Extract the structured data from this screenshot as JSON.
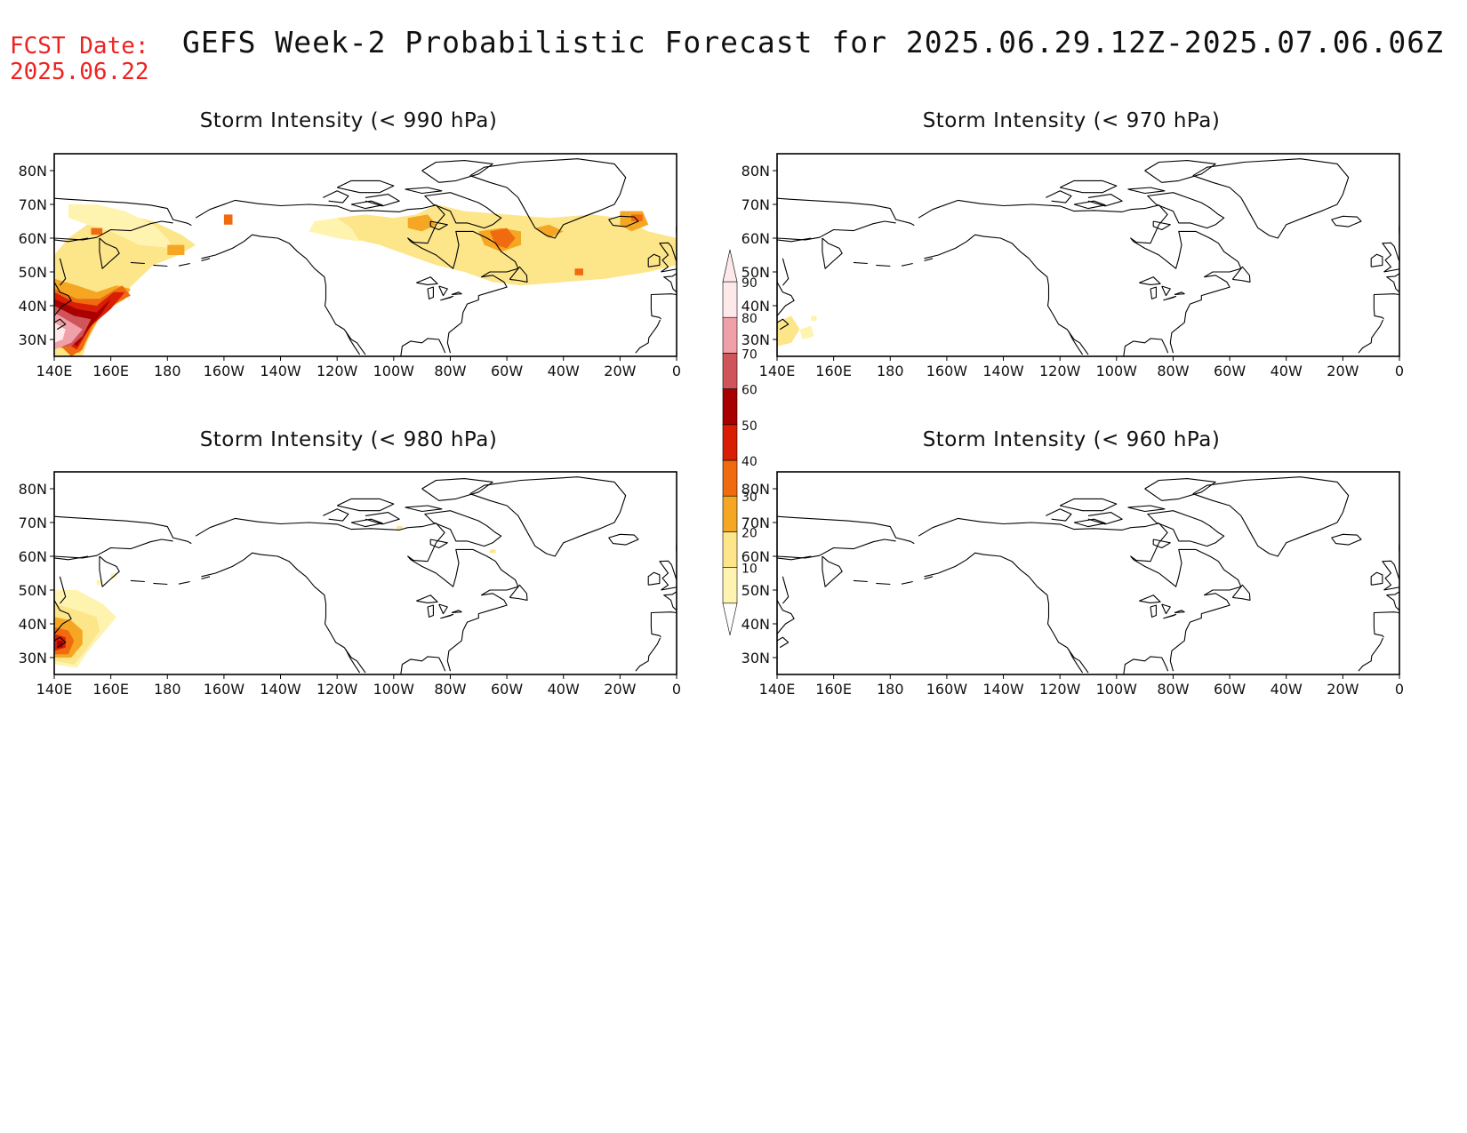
{
  "header": {
    "fcst_label": "FCST Date:",
    "fcst_date": "2025.06.22",
    "title": "GEFS Week-2 Probabilistic Forecast for 2025.06.29.12Z-2025.07.06.06Z"
  },
  "colors": {
    "title_red": "#ee2222",
    "levels": [
      "#fff3b0",
      "#fde58a",
      "#f5a623",
      "#f06a10",
      "#d81e05",
      "#a80000",
      "#d0555a",
      "#f0a0a8",
      "#fde8ea"
    ]
  },
  "colorbar": {
    "labels": [
      "10",
      "20",
      "30",
      "40",
      "50",
      "60",
      "70",
      "80",
      "90"
    ]
  },
  "axes": {
    "lon_labels": [
      "140E",
      "160E",
      "180",
      "160W",
      "140W",
      "120W",
      "100W",
      "80W",
      "60W",
      "40W",
      "20W",
      "0"
    ],
    "lat_labels": [
      "30N",
      "40N",
      "50N",
      "60N",
      "70N",
      "80N"
    ]
  },
  "panels": [
    {
      "id": "p990",
      "title": "Storm Intensity (< 990 hPa)"
    },
    {
      "id": "p970",
      "title": "Storm Intensity (< 970 hPa)"
    },
    {
      "id": "p980",
      "title": "Storm Intensity (< 980 hPa)"
    },
    {
      "id": "p960",
      "title": "Storm Intensity (< 960 hPa)"
    }
  ]
}
